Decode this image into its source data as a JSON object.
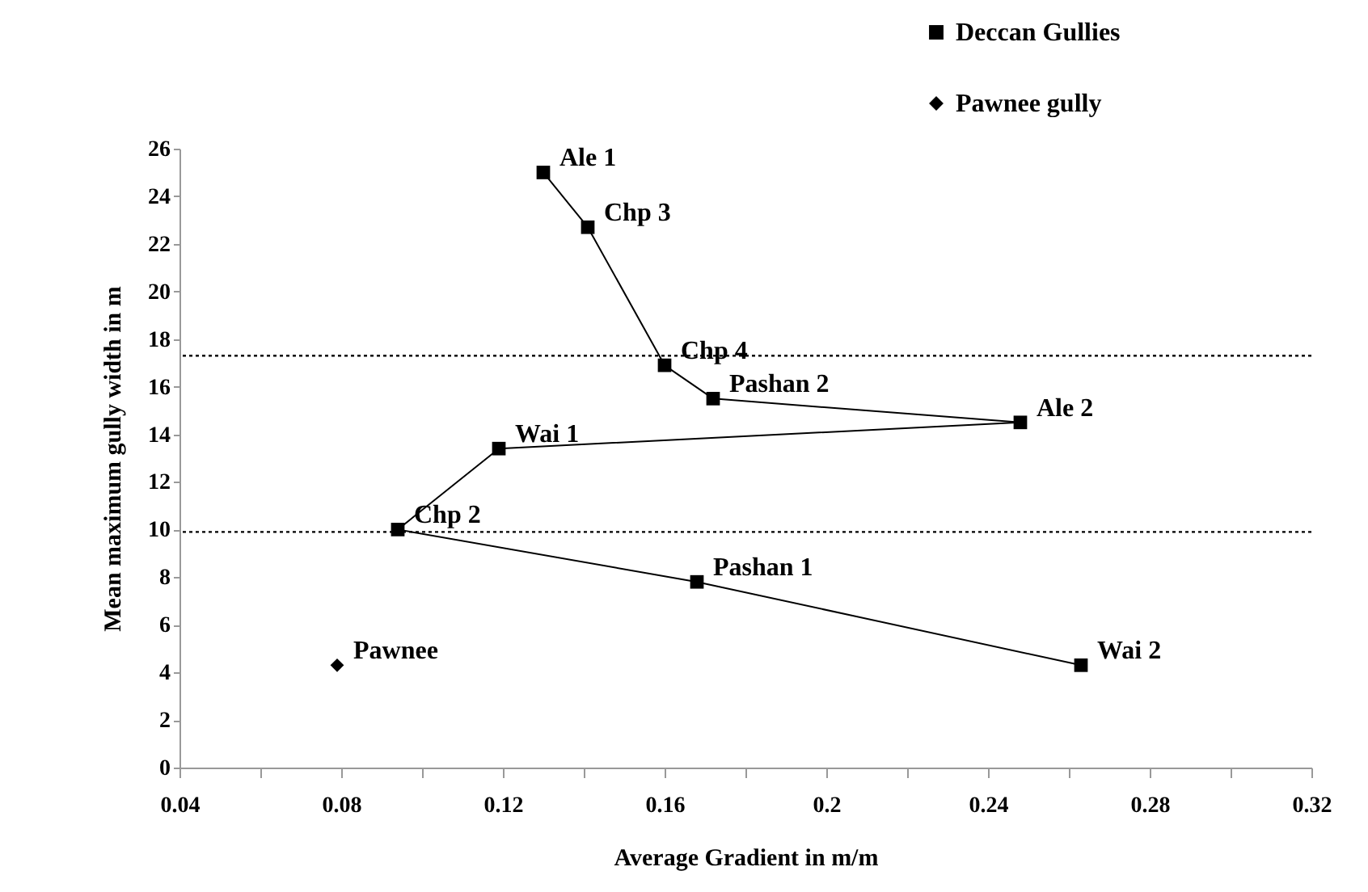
{
  "chart_data": {
    "type": "line",
    "xlabel": "Average Gradient in m/m",
    "ylabel": "Mean maximum gully width in m",
    "series": [
      {
        "name": "Deccan Gullies",
        "color": "#000000",
        "marker": "square",
        "x": [
          0.13,
          0.141,
          0.16,
          0.172,
          0.248,
          0.119,
          0.094,
          0.168,
          0.263
        ],
        "values": [
          25.0,
          22.7,
          16.9,
          15.5,
          14.5,
          13.4,
          10.0,
          7.8,
          4.3
        ]
      },
      {
        "name": "Pawnee gully",
        "type": "scatter",
        "color": "#000000",
        "marker": "diamond",
        "x": [
          0.079
        ],
        "values": [
          4.3
        ]
      }
    ],
    "xlim": [
      0.04,
      0.32
    ],
    "ylim": [
      0,
      26
    ],
    "xticks": [
      0.04,
      {
        "value": 0.06,
        "label": null
      },
      0.08,
      {
        "value": 0.1,
        "label": null
      },
      0.12,
      {
        "value": 0.14,
        "label": null
      },
      0.16,
      {
        "value": 0.18,
        "label": null
      },
      0.2,
      {
        "value": 0.22,
        "label": null
      },
      0.24,
      {
        "value": 0.26,
        "label": null
      },
      0.28,
      {
        "value": 0.3,
        "label": null
      },
      0.32
    ],
    "yticks": [
      0,
      2,
      4,
      6,
      8,
      10,
      12,
      14,
      16,
      18,
      20,
      22,
      24,
      26
    ],
    "ref_lines": [
      {
        "axis": "y",
        "value": 17.3,
        "line_style": "dotted",
        "color": "#000000"
      },
      {
        "axis": "y",
        "value": 9.9,
        "line_style": "dotted",
        "color": "#000000"
      }
    ],
    "annotations": [
      {
        "text": "Ale 1",
        "x": 0.13,
        "y": 25.0
      },
      {
        "text": "Chp 3",
        "x": 0.141,
        "y": 22.7
      },
      {
        "text": "Chp 4",
        "x": 0.16,
        "y": 16.9
      },
      {
        "text": "Pashan 2",
        "x": 0.172,
        "y": 15.5
      },
      {
        "text": "Ale 2",
        "x": 0.248,
        "y": 14.5
      },
      {
        "text": "Wai 1",
        "x": 0.119,
        "y": 13.4
      },
      {
        "text": "Chp 2",
        "x": 0.094,
        "y": 10.0
      },
      {
        "text": "Pashan 1",
        "x": 0.168,
        "y": 7.8
      },
      {
        "text": "Wai 2",
        "x": 0.263,
        "y": 4.3
      },
      {
        "text": "Pawnee",
        "x": 0.079,
        "y": 4.3
      }
    ],
    "legend": "top right",
    "grid": false
  }
}
